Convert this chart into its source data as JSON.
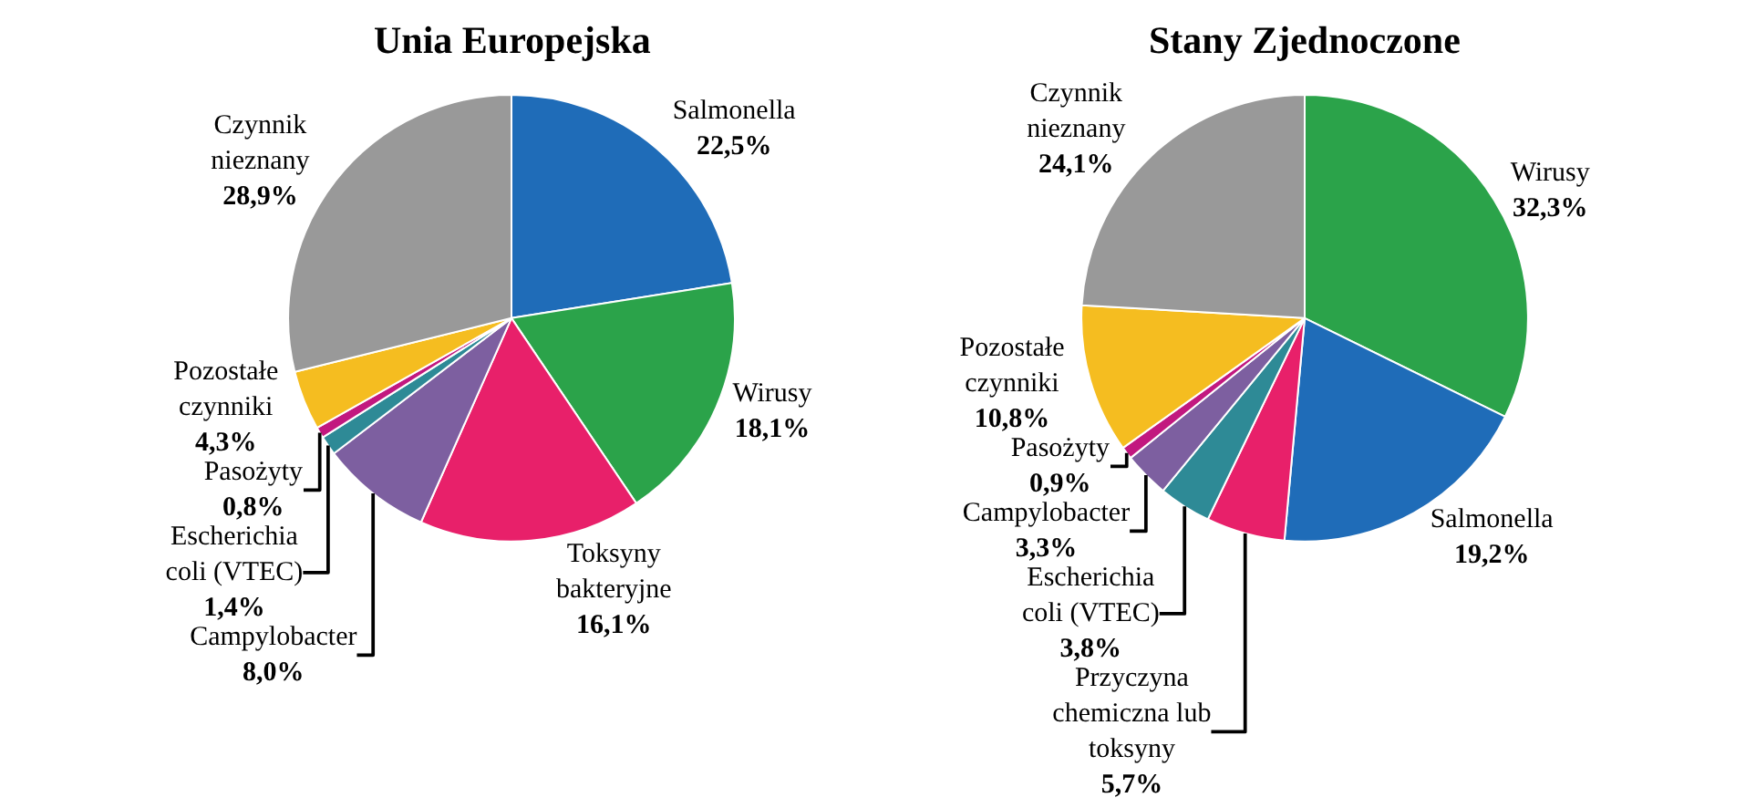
{
  "chart_data": [
    {
      "type": "pie",
      "title": "Unia Europejska",
      "legend": false,
      "categories": [
        "Salmonella",
        "Wirusy",
        "Toksyny bakteryjne",
        "Campylobacter",
        "Escherichia coli (VTEC)",
        "Pasożyty",
        "Pozostałe czynniki",
        "Czynnik nieznany"
      ],
      "values": [
        22.5,
        18.1,
        16.1,
        8.0,
        1.4,
        0.8,
        4.3,
        28.9
      ],
      "value_labels": [
        "22,5%",
        "18,1%",
        "16,1%",
        "8,0%",
        "1,4%",
        "0,8%",
        "4,3%",
        "28,9%"
      ],
      "colors": [
        "#1f6cb8",
        "#2ba34a",
        "#e8206a",
        "#7d5fa0",
        "#2e8a96",
        "#c2187f",
        "#f5bd20",
        "#999999"
      ]
    },
    {
      "type": "pie",
      "title": "Stany Zjednoczone",
      "legend": false,
      "categories": [
        "Wirusy",
        "Salmonella",
        "Przyczyna chemiczna lub toksyny",
        "Escherichia coli (VTEC)",
        "Campylobacter",
        "Pasożyty",
        "Pozostałe czynniki",
        "Czynnik nieznany"
      ],
      "values": [
        32.3,
        19.2,
        5.7,
        3.8,
        3.3,
        0.9,
        10.8,
        24.1
      ],
      "value_labels": [
        "32,3%",
        "19,2%",
        "5,7%",
        "3,8%",
        "3,3%",
        "0,9%",
        "10,8%",
        "24,1%"
      ],
      "colors": [
        "#2ba34a",
        "#1f6cb8",
        "#e8206a",
        "#2e8a96",
        "#7d5fa0",
        "#c2187f",
        "#f5bd20",
        "#999999"
      ]
    }
  ]
}
